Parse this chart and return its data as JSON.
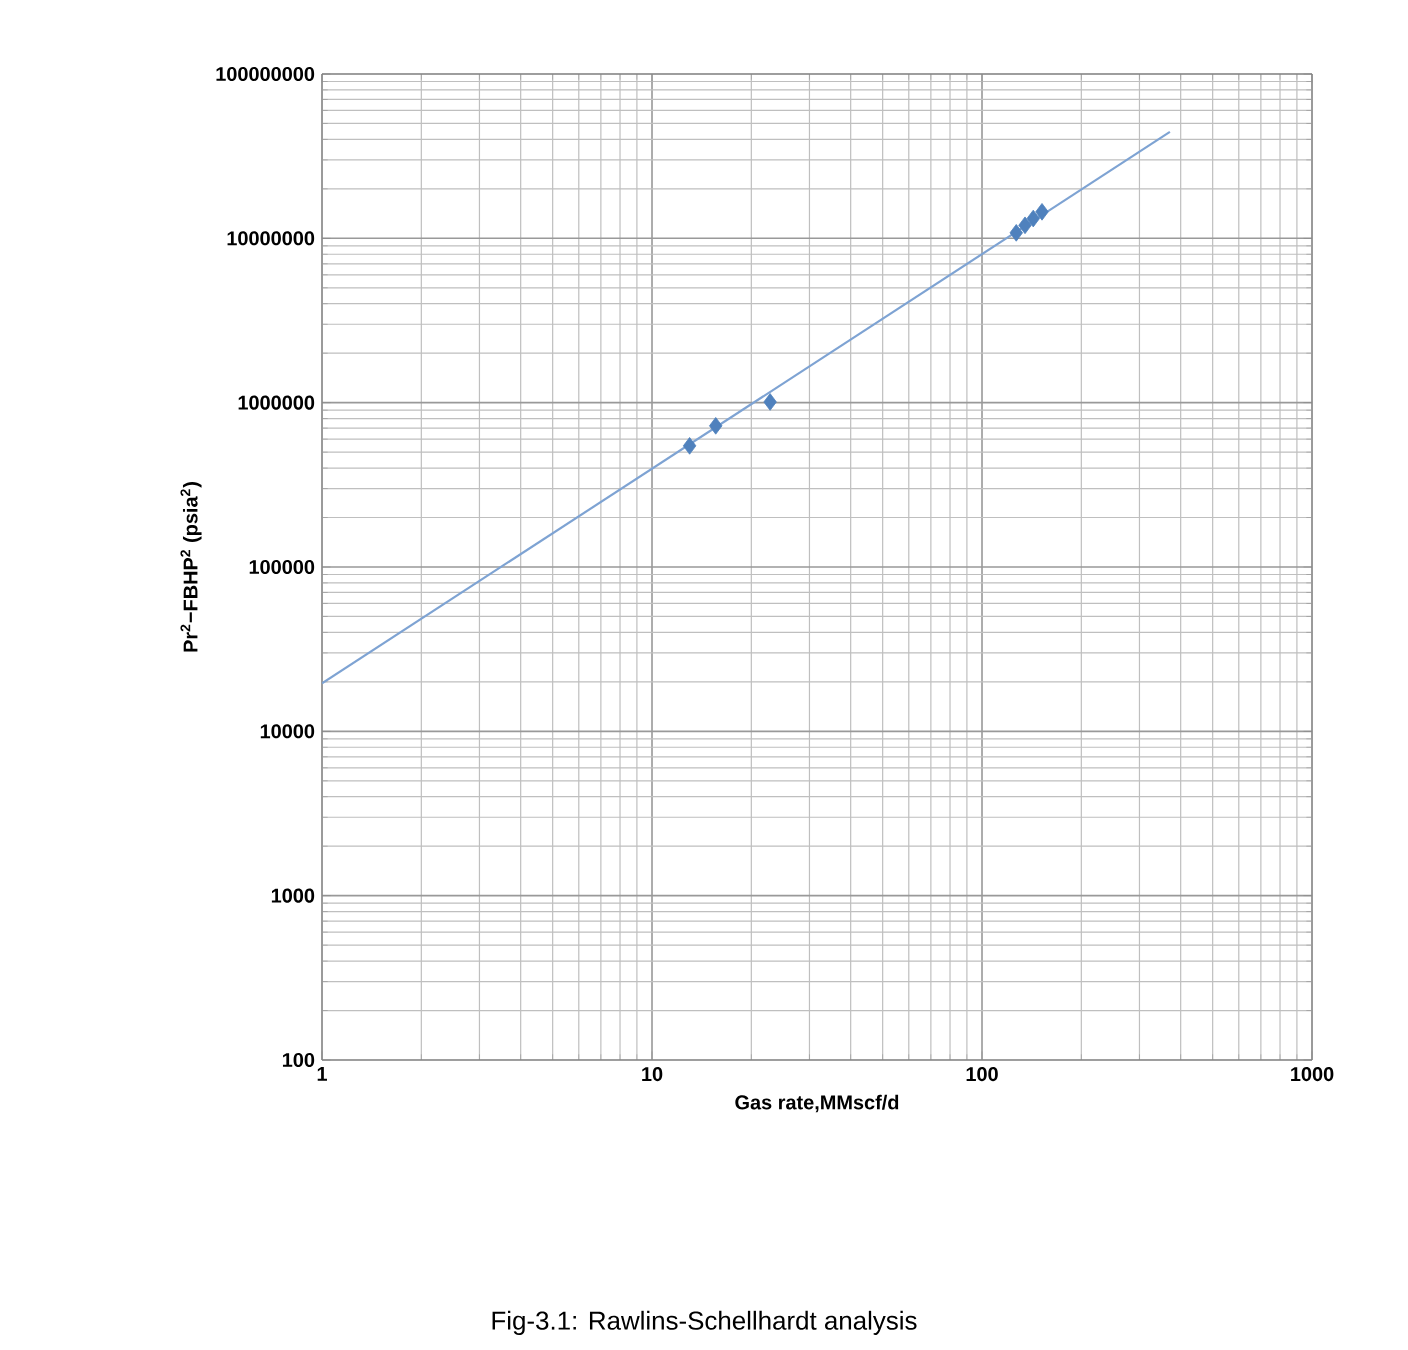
{
  "chart_data": {
    "type": "scatter",
    "xlabel": "Gas rate,MMscf/d",
    "ylabel": "Pr$^{2}$−FBHP$^{2}$ (psia$^{2}$)",
    "annotations": [
      "Fig-3.1: Rawlins-Schellhardt analysis"
    ],
    "log": "xy",
    "grid": true,
    "marker": "diamond",
    "xlim": [
      1,
      1000
    ],
    "ylim": [
      100,
      100000000
    ],
    "xticks": [
      1,
      10,
      100,
      1000
    ],
    "yticks": [
      100,
      1000,
      10000,
      100000,
      1000000,
      10000000,
      100000000
    ],
    "series": [
      {
        "color": "#4f81bd",
        "x": [
          13.0,
          15.6,
          22.8,
          127,
          135,
          143,
          152
        ],
        "values": [
          546000,
          723000,
          1010000,
          10800000,
          12000000,
          13200000,
          14500000
        ]
      },
      {
        "type": "line",
        "color": "#7ea3d3",
        "marker": "none",
        "x": [
          1,
          371
        ],
        "values": [
          19600,
          44400000
        ]
      }
    ]
  }
}
